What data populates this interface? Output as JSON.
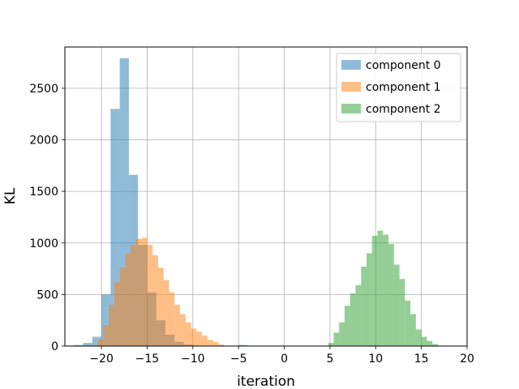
{
  "chart_data": {
    "type": "bar",
    "subtype": "histogram",
    "title": "",
    "xlabel": "iteration",
    "ylabel": "KL",
    "xlim": [
      -24,
      20
    ],
    "ylim": [
      0,
      2900
    ],
    "xticks": [
      -20,
      -15,
      -10,
      -5,
      0,
      5,
      10,
      15,
      20
    ],
    "xtick_labels": [
      "−20",
      "−15",
      "−10",
      "−5",
      "0",
      "5",
      "10",
      "15",
      "20"
    ],
    "yticks": [
      0,
      500,
      1000,
      1500,
      2000,
      2500
    ],
    "ytick_labels": [
      "0",
      "500",
      "1000",
      "1500",
      "2000",
      "2500"
    ],
    "grid": true,
    "legend_position": "upper right",
    "series": [
      {
        "name": "component 0",
        "color": "#1f77b4",
        "bin_edges": [
          -23.0,
          -22.0,
          -21.0,
          -20.0,
          -19.0,
          -18.0,
          -17.0,
          -16.0,
          -15.0,
          -14.0,
          -13.0,
          -12.0,
          -11.0,
          -10.0,
          -9.0,
          -8.0,
          -7.0,
          -6.0,
          -5.0,
          -4.0
        ],
        "values": [
          10,
          30,
          90,
          500,
          2300,
          2790,
          1660,
          980,
          520,
          250,
          110,
          40,
          15,
          5,
          2,
          1,
          0,
          0,
          10
        ]
      },
      {
        "name": "component 1",
        "color": "#ff7f0e",
        "bin_edges": [
          -21.0,
          -20.4,
          -19.8,
          -19.2,
          -18.6,
          -18.0,
          -17.4,
          -16.8,
          -16.2,
          -15.6,
          -15.0,
          -14.4,
          -13.8,
          -13.2,
          -12.6,
          -12.0,
          -11.4,
          -10.8,
          -10.2,
          -9.6,
          -9.0,
          -8.4,
          -7.8,
          -7.2,
          -6.6,
          -6.0
        ],
        "values": [
          10,
          60,
          200,
          400,
          620,
          760,
          900,
          980,
          1040,
          1050,
          980,
          880,
          760,
          640,
          520,
          400,
          310,
          230,
          170,
          140,
          100,
          60,
          40,
          15,
          5
        ]
      },
      {
        "name": "component 2",
        "color": "#2ca02c",
        "bin_edges": [
          4.8,
          5.4,
          6.0,
          6.6,
          7.2,
          7.8,
          8.4,
          9.0,
          9.6,
          10.2,
          10.8,
          11.4,
          12.0,
          12.6,
          13.2,
          13.8,
          14.4,
          15.0,
          15.6,
          16.2,
          16.8
        ],
        "values": [
          30,
          130,
          230,
          390,
          510,
          590,
          770,
          900,
          1070,
          1120,
          1080,
          990,
          790,
          650,
          440,
          310,
          160,
          90,
          50,
          20
        ]
      }
    ]
  }
}
